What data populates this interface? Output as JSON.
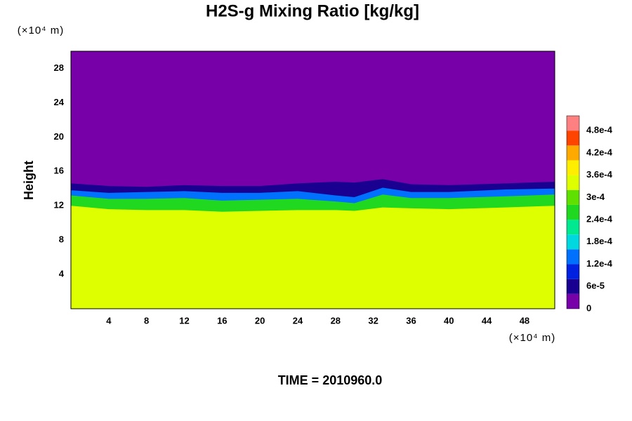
{
  "chart_data": {
    "type": "contour",
    "title": "H2S-g Mixing Ratio [kg/kg]",
    "y_unit": "(×10⁴ m)",
    "x_unit": "(×10⁴ m)",
    "ylabel": "Height",
    "footer": "TIME = 2010960.0",
    "xlim": [
      0,
      51.2
    ],
    "ylim": [
      0,
      30
    ],
    "xticks": [
      4,
      8,
      12,
      16,
      20,
      24,
      28,
      32,
      36,
      40,
      44,
      48
    ],
    "yticks": [
      4,
      8,
      12,
      16,
      20,
      24,
      28
    ],
    "clim": [
      0,
      0.00052
    ],
    "colormap": [
      "#7700a8",
      "#1a0090",
      "#0022e0",
      "#0070ff",
      "#00d8e0",
      "#00e890",
      "#20d820",
      "#60e000",
      "#ddff00",
      "#ffee00",
      "#ffaa00",
      "#ff4400",
      "#ff8080"
    ],
    "cticks": [
      0,
      {
        "value": 6e-05,
        "label": "6e-5"
      },
      {
        "value": 0.00012,
        "label": "1.2e-4"
      },
      {
        "value": 0.00018,
        "label": "1.8e-4"
      },
      {
        "value": 0.00024,
        "label": "2.4e-4"
      },
      {
        "value": 0.0003,
        "label": "3e-4"
      },
      {
        "value": 0.00036,
        "label": "3.6e-4"
      },
      {
        "value": 0.00042,
        "label": "4.2e-4"
      },
      {
        "value": 0.00048,
        "label": "4.8e-4"
      }
    ],
    "background_value": 0,
    "x": [
      0,
      4,
      8,
      12,
      16,
      20,
      24,
      28,
      30,
      33,
      36,
      40,
      46,
      51.2
    ],
    "bands": [
      {
        "value": 6e-05,
        "top": [
          14.6,
          14.3,
          14.2,
          14.4,
          14.3,
          14.3,
          14.6,
          14.8,
          14.7,
          15.1,
          14.5,
          14.4,
          14.6,
          14.8
        ]
      },
      {
        "value": 0.00015,
        "top": [
          13.8,
          13.5,
          13.6,
          13.7,
          13.5,
          13.5,
          13.7,
          13.2,
          13.0,
          14.1,
          13.6,
          13.6,
          13.9,
          14.0
        ]
      },
      {
        "value": 0.00026,
        "top": [
          13.2,
          12.8,
          12.8,
          12.9,
          12.6,
          12.7,
          12.8,
          12.5,
          12.3,
          13.3,
          12.9,
          12.9,
          13.1,
          13.3
        ]
      },
      {
        "value": 0.00033,
        "top": [
          12.0,
          11.6,
          11.5,
          11.5,
          11.3,
          11.4,
          11.5,
          11.5,
          11.4,
          11.8,
          11.7,
          11.6,
          11.8,
          12.0
        ]
      }
    ]
  }
}
